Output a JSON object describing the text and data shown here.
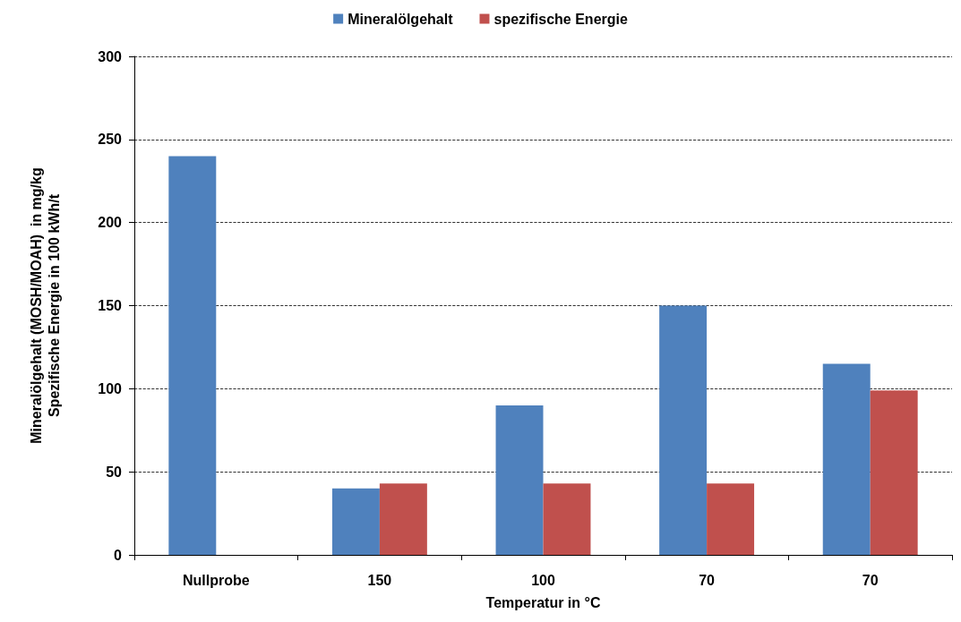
{
  "chart_data": {
    "type": "bar",
    "xlabel": "Temperatur in °C",
    "ylabel": "Mineralölgehalt (MOSH/MOAH)  in mg/kg\nSpezifische Energie in 100 kWh/t",
    "categories": [
      "Nullprobe",
      "150",
      "100",
      "70",
      "70"
    ],
    "series": [
      {
        "name": "Mineralölgehalt",
        "color": "#4f81bd",
        "values": [
          240,
          40,
          90,
          150,
          115
        ]
      },
      {
        "name": "spezifische Energie",
        "color": "#c0504d",
        "values": [
          null,
          43,
          43,
          43,
          99
        ]
      }
    ],
    "ylim": [
      0,
      300
    ],
    "yticks": [
      0,
      50,
      100,
      150,
      200,
      250,
      300
    ],
    "grid": "y",
    "legend": "top"
  }
}
